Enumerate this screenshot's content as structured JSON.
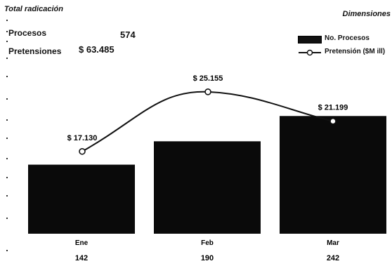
{
  "header": {
    "total_title": "Total radicación",
    "dimensions_title": "Dimensiones",
    "procesos_label": "Procesos",
    "procesos_value": "574",
    "pretensiones_label": "Pretensiones",
    "pretensiones_value": "$ 63.485"
  },
  "legend": {
    "bar_label": "No. Procesos",
    "line_label": "Pretensión ($M ill)"
  },
  "colors": {
    "bar": "#0a0a0a",
    "line": "#111111",
    "marker_fill": "#ffffff"
  },
  "chart_data": {
    "type": "bar",
    "categories": [
      "Ene",
      "Feb",
      "Mar"
    ],
    "series": [
      {
        "name": "No. Procesos",
        "type": "bar",
        "values": [
          142,
          190,
          242
        ],
        "labels": [
          "142",
          "190",
          "242"
        ]
      },
      {
        "name": "Pretensión ($M ill)",
        "type": "line",
        "values": [
          17130,
          25155,
          21199
        ],
        "labels": [
          "$ 17.130",
          "$ 25.155",
          "$ 21.199"
        ]
      }
    ],
    "title": "",
    "xlabel": "",
    "ylabel": "",
    "legend_position": "top-right",
    "grid": false
  }
}
